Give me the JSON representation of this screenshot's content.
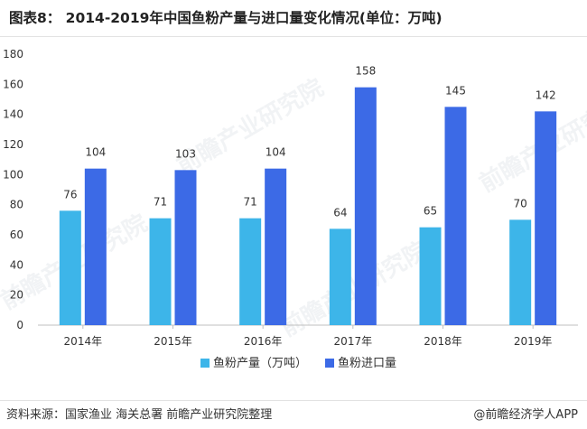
{
  "title": "图表8： 2014-2019年中国鱼粉产量与进口量变化情况(单位：万吨)",
  "source": "资料来源：国家渔业 海关总署 前瞻产业研究院整理",
  "brand": "@前瞻经济学人APP",
  "watermark": "前瞻产业研究院",
  "colors": {
    "production": "#3db5e9",
    "import": "#3c6ae6",
    "axis": "#bfbfbf",
    "text": "#333333"
  },
  "chart_data": {
    "type": "bar",
    "categories": [
      "2014年",
      "2015年",
      "2016年",
      "2017年",
      "2018年",
      "2019年"
    ],
    "series": [
      {
        "name": "鱼粉产量（万吨）",
        "values": [
          76,
          71,
          71,
          64,
          65,
          70
        ]
      },
      {
        "name": "鱼粉进口量",
        "values": [
          104,
          103,
          104,
          158,
          145,
          142
        ]
      }
    ],
    "ylim": [
      0,
      180
    ],
    "yticks": [
      "0",
      "20",
      "40",
      "60",
      "80",
      "100",
      "120",
      "140",
      "160",
      "180"
    ],
    "grid": false,
    "legend_position": "bottom",
    "data_labels": true
  }
}
